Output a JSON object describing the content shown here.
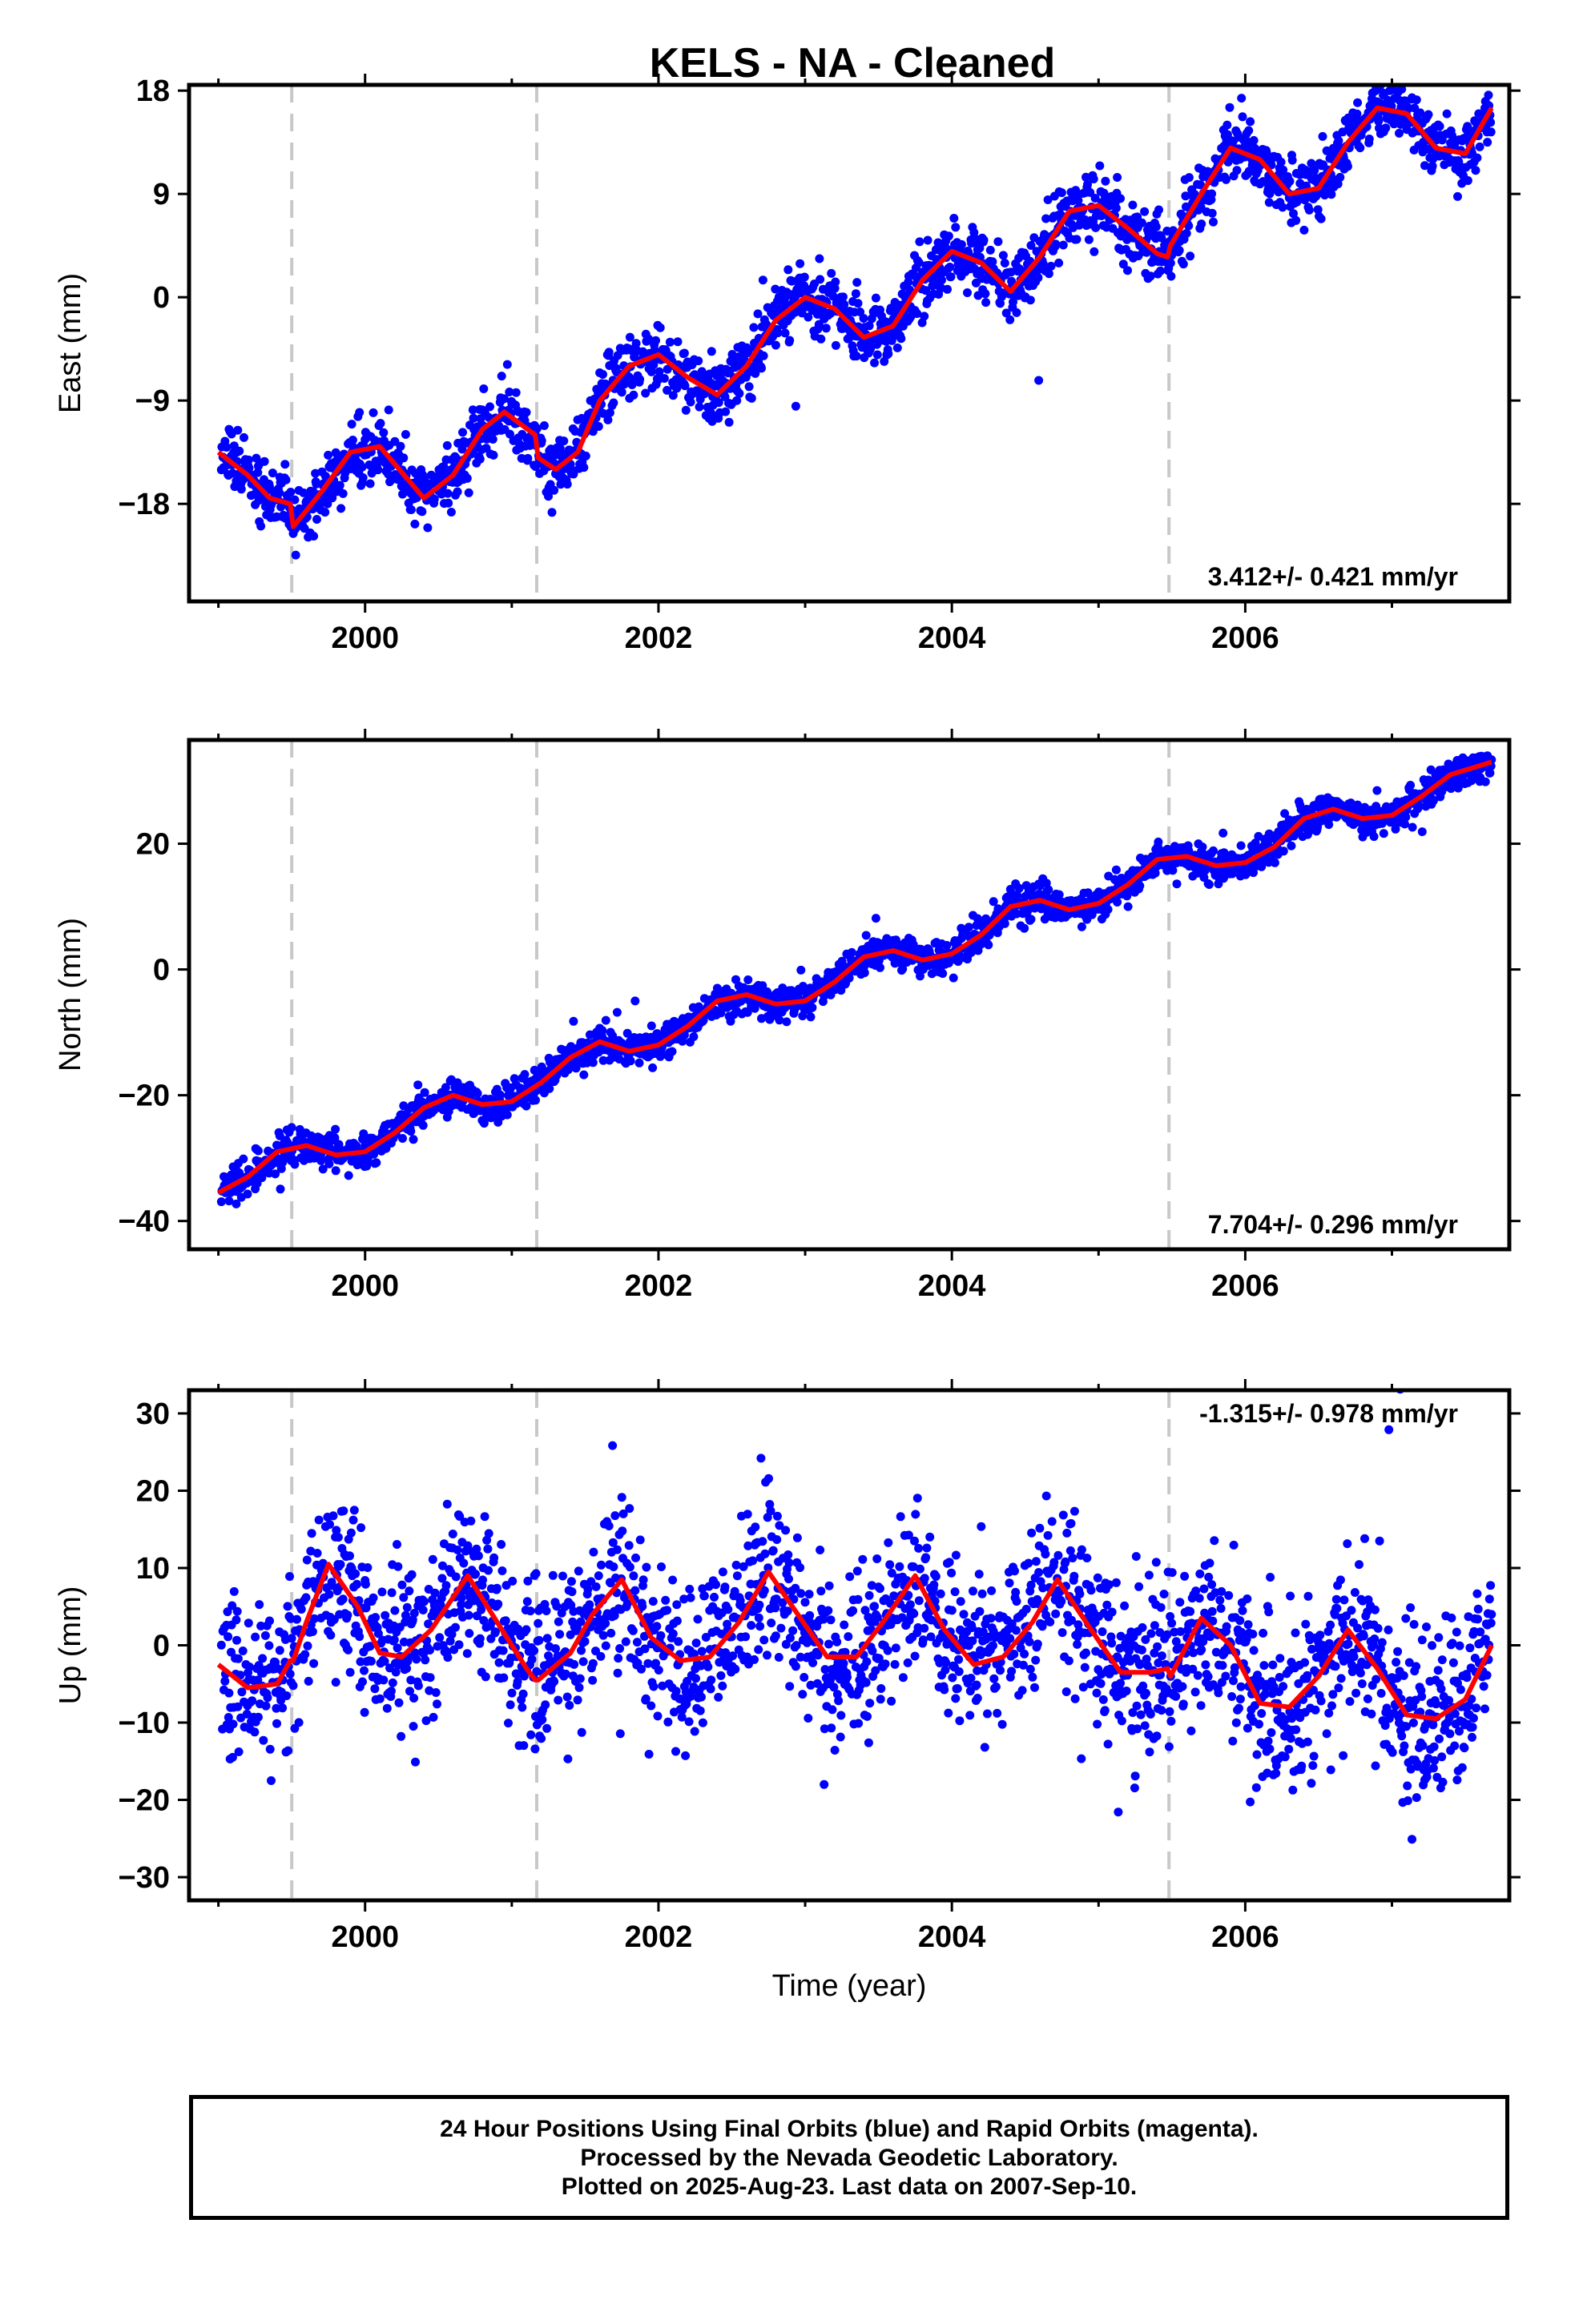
{
  "title": "KELS  - NA - Cleaned",
  "xlabel": "Time (year)",
  "caption": {
    "line1": "24 Hour Positions Using Final Orbits (blue) and Rapid Orbits (magenta).",
    "line2": "Processed by the Nevada Geodetic Laboratory.",
    "line3": "Plotted on 2025-Aug-23. Last data on 2007-Sep-10."
  },
  "colors": {
    "points": "#0000ff",
    "model": "#ff0000",
    "breaks": "#c8c8c8",
    "frame": "#000000"
  },
  "chart_data": [
    {
      "type": "scatter",
      "ylabel": "East (mm)",
      "rate": "3.412+/- 0.421 mm/yr",
      "xlim": [
        1998.8,
        2007.8
      ],
      "ylim": [
        -26.5,
        18.5
      ],
      "yticks": [
        18,
        9,
        0,
        -9,
        -18
      ],
      "ytick_labels": [
        "18",
        "9",
        "0",
        "−9",
        "−18"
      ],
      "xticks": [
        2000,
        2002,
        2004,
        2006
      ],
      "xtick_labels": [
        "2000",
        "2002",
        "2004",
        "2006"
      ],
      "breaks": [
        1999.5,
        2001.17,
        2005.48
      ],
      "model": {
        "x": [
          1999.0,
          1999.2,
          1999.35,
          1999.49,
          1999.51,
          1999.7,
          1999.9,
          2000.1,
          2000.3,
          2000.4,
          2000.6,
          2000.8,
          2000.95,
          2001.16,
          2001.18,
          2001.3,
          2001.45,
          2001.6,
          2001.8,
          2002.0,
          2002.2,
          2002.4,
          2002.6,
          2002.8,
          2003.0,
          2003.2,
          2003.4,
          2003.6,
          2003.8,
          2004.0,
          2004.2,
          2004.4,
          2004.6,
          2004.8,
          2005.0,
          2005.2,
          2005.4,
          2005.47,
          2005.49,
          2005.7,
          2005.9,
          2006.1,
          2006.3,
          2006.5,
          2006.7,
          2006.9,
          2007.1,
          2007.3,
          2007.5,
          2007.68
        ],
        "y": [
          -13.5,
          -15.5,
          -17.5,
          -18,
          -20,
          -17,
          -13.5,
          -13,
          -16,
          -17.5,
          -15.5,
          -11.5,
          -10,
          -12,
          -14,
          -15,
          -13.5,
          -9,
          -6,
          -5,
          -7,
          -8.5,
          -6,
          -2,
          0,
          -1,
          -3.5,
          -2.5,
          1.5,
          4,
          3,
          0.5,
          3.5,
          7.5,
          8,
          6,
          3.8,
          3.5,
          4.5,
          9,
          13,
          12,
          9,
          9.5,
          13.5,
          16.5,
          16,
          13,
          12.5,
          16.5
        ]
      },
      "seed": 11,
      "noise": 1.4
    },
    {
      "type": "scatter",
      "ylabel": "North (mm)",
      "rate": "7.704+/- 0.296 mm/yr",
      "xlim": [
        1998.8,
        2007.8
      ],
      "ylim": [
        -44.5,
        36.5
      ],
      "yticks": [
        20,
        0,
        -20,
        -40
      ],
      "ytick_labels": [
        "20",
        "0",
        "−20",
        "−40"
      ],
      "xticks": [
        2000,
        2002,
        2004,
        2006
      ],
      "xtick_labels": [
        "2000",
        "2002",
        "2004",
        "2006"
      ],
      "breaks": [
        1999.5,
        2001.17,
        2005.48
      ],
      "model": {
        "x": [
          1999.0,
          1999.2,
          1999.4,
          1999.6,
          1999.8,
          2000.0,
          2000.2,
          2000.4,
          2000.6,
          2000.8,
          2001.0,
          2001.2,
          2001.4,
          2001.6,
          2001.8,
          2002.0,
          2002.2,
          2002.4,
          2002.6,
          2002.8,
          2003.0,
          2003.2,
          2003.4,
          2003.6,
          2003.8,
          2004.0,
          2004.2,
          2004.4,
          2004.6,
          2004.8,
          2005.0,
          2005.2,
          2005.4,
          2005.6,
          2005.8,
          2006.0,
          2006.2,
          2006.4,
          2006.6,
          2006.8,
          2007.0,
          2007.2,
          2007.4,
          2007.68
        ],
        "y": [
          -35.5,
          -33,
          -29,
          -28,
          -29.5,
          -29,
          -26,
          -22,
          -20,
          -21.5,
          -21,
          -18,
          -14,
          -11.5,
          -13,
          -12,
          -9,
          -5,
          -4,
          -5.5,
          -5,
          -2,
          2,
          3,
          1.5,
          2.5,
          5.5,
          10,
          11,
          9.5,
          10.5,
          13.5,
          17.5,
          18,
          16.5,
          17,
          19.5,
          24,
          25.5,
          24,
          24.5,
          27.5,
          31,
          33
        ]
      },
      "seed": 23,
      "noise": 1.3
    },
    {
      "type": "scatter",
      "ylabel": "Up (mm)",
      "rate": "-1.315+/- 0.978 mm/yr",
      "xlim": [
        1998.8,
        2007.8
      ],
      "ylim": [
        -33,
        33
      ],
      "yticks": [
        30,
        20,
        10,
        0,
        -10,
        -20,
        -30
      ],
      "ytick_labels": [
        "30",
        "20",
        "10",
        "0",
        "−10",
        "−20",
        "−30"
      ],
      "xticks": [
        2000,
        2002,
        2004,
        2006
      ],
      "xtick_labels": [
        "2000",
        "2002",
        "2004",
        "2006"
      ],
      "breaks": [
        1999.5,
        2001.17,
        2005.48
      ],
      "model": {
        "x": [
          1999.0,
          1999.2,
          1999.4,
          1999.49,
          1999.51,
          1999.6,
          1999.75,
          1999.95,
          2000.1,
          2000.25,
          2000.45,
          2000.7,
          2000.9,
          2001.1,
          2001.16,
          2001.18,
          2001.4,
          2001.55,
          2001.75,
          2001.95,
          2002.15,
          2002.35,
          2002.55,
          2002.75,
          2002.95,
          2003.15,
          2003.35,
          2003.55,
          2003.75,
          2003.95,
          2004.15,
          2004.35,
          2004.55,
          2004.72,
          2004.95,
          2005.15,
          2005.35,
          2005.47,
          2005.49,
          2005.7,
          2005.9,
          2006.1,
          2006.3,
          2006.5,
          2006.7,
          2006.9,
          2007.1,
          2007.3,
          2007.5,
          2007.68
        ],
        "y": [
          -2.5,
          -5.5,
          -5,
          -2,
          -2,
          3,
          10.5,
          5,
          -1,
          -1.5,
          2,
          9,
          3,
          -3,
          -4.5,
          -4.5,
          -1,
          4,
          8.5,
          1,
          -2,
          -1.5,
          3,
          9.5,
          4,
          -1.5,
          -1.5,
          3.5,
          9,
          2,
          -2.5,
          -1.5,
          3,
          8.5,
          2,
          -3.5,
          -3.5,
          -3,
          -4,
          3.5,
          0,
          -7.5,
          -8,
          -4,
          2,
          -3,
          -9,
          -9.5,
          -7,
          0
        ]
      },
      "seed": 37,
      "noise": 5.2
    }
  ]
}
